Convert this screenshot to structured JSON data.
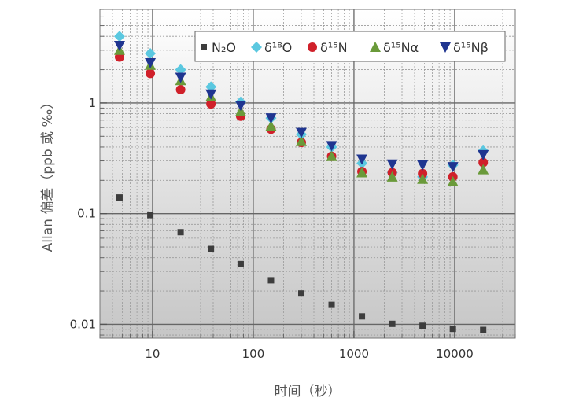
{
  "chart_data": {
    "type": "scatter",
    "xscale": "log",
    "yscale": "log",
    "xlim": [
      3,
      40000
    ],
    "ylim": [
      0.0075,
      7
    ],
    "xlabel": "时间（秒）",
    "ylabel": "Allan 偏差（ppb 或 ‰）",
    "grid": true,
    "legend_position": "top-right",
    "x_ticks": [
      {
        "value": 10,
        "label": "10"
      },
      {
        "value": 100,
        "label": "100"
      },
      {
        "value": 1000,
        "label": "1000"
      },
      {
        "value": 10000,
        "label": "10000"
      }
    ],
    "y_ticks": [
      {
        "value": 0.01,
        "label": "0.01"
      },
      {
        "value": 0.1,
        "label": "0.1"
      },
      {
        "value": 1,
        "label": "1"
      }
    ],
    "x": [
      4.7,
      9.5,
      19,
      38,
      75,
      150,
      300,
      600,
      1200,
      2400,
      4800,
      9600,
      19200
    ],
    "series": [
      {
        "name": "N₂O",
        "marker": "square",
        "color": "#3d3d3d",
        "values": [
          0.14,
          0.097,
          0.068,
          0.048,
          0.035,
          0.025,
          0.019,
          0.015,
          0.0118,
          0.0101,
          0.0097,
          0.0091,
          0.0089
        ]
      },
      {
        "name": "δ¹⁸O",
        "marker": "diamond",
        "color": "#5bc8e0",
        "values": [
          4.0,
          2.8,
          2.0,
          1.4,
          1.02,
          0.73,
          0.52,
          0.4,
          0.285,
          0.235,
          0.215,
          0.275,
          0.37
        ]
      },
      {
        "name": "δ¹⁵N",
        "marker": "circle",
        "color": "#d0202a",
        "values": [
          2.6,
          1.85,
          1.32,
          0.98,
          0.76,
          0.58,
          0.44,
          0.33,
          0.24,
          0.235,
          0.23,
          0.215,
          0.29
        ]
      },
      {
        "name": "δ¹⁵Nα",
        "marker": "triangle-up",
        "color": "#6a9a3a",
        "values": [
          3.0,
          2.2,
          1.6,
          1.14,
          0.84,
          0.62,
          0.45,
          0.33,
          0.235,
          0.215,
          0.205,
          0.195,
          0.25
        ]
      },
      {
        "name": "δ¹⁵Nβ",
        "marker": "triangle-down",
        "color": "#1f3590",
        "values": [
          3.3,
          2.3,
          1.7,
          1.2,
          0.95,
          0.73,
          0.54,
          0.41,
          0.31,
          0.28,
          0.275,
          0.265,
          0.34
        ]
      }
    ]
  }
}
